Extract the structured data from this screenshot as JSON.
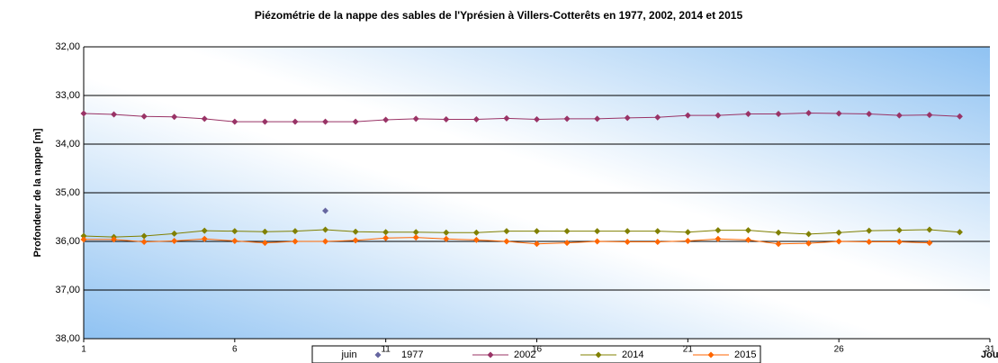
{
  "chart_data": {
    "type": "line",
    "title": "Piézométrie de la nappe des sables de l'Yprésien à Villers-Cotterêts en 1977, 2002, 2014 et 2015",
    "y_label": "Profondeur de la nappe [m]",
    "x_label": "Jour",
    "legend_title": "juin",
    "x": [
      1,
      2,
      3,
      4,
      5,
      6,
      7,
      8,
      9,
      10,
      11,
      12,
      13,
      14,
      15,
      16,
      17,
      18,
      19,
      20,
      21,
      22,
      23,
      24,
      25,
      26,
      27,
      28,
      29,
      30
    ],
    "xlim": [
      1,
      31
    ],
    "xticks": [
      1,
      6,
      11,
      16,
      21,
      26,
      31
    ],
    "ylim": [
      32,
      38
    ],
    "y_inverted": true,
    "yticks": [
      {
        "value": 32,
        "label": "32,00"
      },
      {
        "value": 33,
        "label": "33,00"
      },
      {
        "value": 34,
        "label": "34,00"
      },
      {
        "value": 35,
        "label": "35,00"
      },
      {
        "value": 36,
        "label": "36,00"
      },
      {
        "value": 37,
        "label": "37,00"
      },
      {
        "value": 38,
        "label": "38,00"
      }
    ],
    "grid": true,
    "series": [
      {
        "name": "1977",
        "color": "#6666a0",
        "values": [
          null,
          null,
          null,
          null,
          null,
          null,
          null,
          null,
          35.37,
          null,
          null,
          null,
          null,
          null,
          null,
          null,
          null,
          null,
          null,
          null,
          null,
          null,
          null,
          null,
          null,
          null,
          null,
          null,
          null,
          null
        ]
      },
      {
        "name": "2002",
        "color": "#993366",
        "values": [
          33.37,
          33.39,
          33.43,
          33.44,
          33.48,
          33.54,
          33.54,
          33.54,
          33.54,
          33.54,
          33.5,
          33.48,
          33.49,
          33.49,
          33.47,
          33.49,
          33.48,
          33.48,
          33.46,
          33.45,
          33.41,
          33.41,
          33.38,
          33.38,
          33.36,
          33.37,
          33.38,
          33.41,
          33.4,
          33.43
        ]
      },
      {
        "name": "2014",
        "color": "#808000",
        "values": [
          35.89,
          35.91,
          35.89,
          35.84,
          35.78,
          35.79,
          35.8,
          35.79,
          35.76,
          35.8,
          35.81,
          35.81,
          35.82,
          35.82,
          35.79,
          35.79,
          35.79,
          35.79,
          35.79,
          35.79,
          35.81,
          35.77,
          35.77,
          35.82,
          35.85,
          35.82,
          35.78,
          35.77,
          35.76,
          35.81
        ]
      },
      {
        "name": "2015",
        "color": "#ff6600",
        "values": [
          35.96,
          35.96,
          36.01,
          35.99,
          35.95,
          35.99,
          36.03,
          36.0,
          36.0,
          35.98,
          35.93,
          35.92,
          35.95,
          35.97,
          36.0,
          36.05,
          36.03,
          36.0,
          36.01,
          36.01,
          35.99,
          35.95,
          35.97,
          36.05,
          36.04,
          36.0,
          36.01,
          36.01,
          36.03,
          null
        ]
      }
    ]
  }
}
